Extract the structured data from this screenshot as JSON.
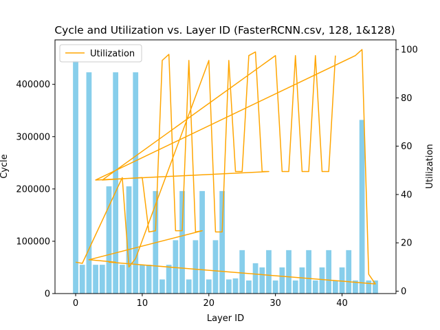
{
  "chart_data": {
    "type": "bar",
    "title": "Cycle and Utilization vs. Layer ID (FasterRCNN.csv, 128, 1&128)",
    "xlabel": "Layer ID",
    "ylabel_left": "Cycle",
    "ylabel_right": "Utilization",
    "xlim": [
      -3.1,
      48.1
    ],
    "ylim_left": [
      0,
      485000
    ],
    "ylim_right": [
      -1,
      104
    ],
    "x_ticks": [
      0,
      10,
      20,
      30,
      40
    ],
    "y_left_ticks": [
      0,
      100000,
      200000,
      300000,
      400000
    ],
    "y_right_ticks": [
      0,
      20,
      40,
      60,
      80,
      100
    ],
    "bar_color": "#87ceeb",
    "line_color": "#ffa500",
    "legend": {
      "label": "Utilization",
      "placement": "upper-left"
    },
    "x": [
      0,
      1,
      2,
      3,
      4,
      5,
      6,
      7,
      8,
      9,
      10,
      11,
      12,
      13,
      14,
      15,
      16,
      17,
      18,
      19,
      20,
      21,
      22,
      23,
      24,
      25,
      26,
      27,
      28,
      29,
      30,
      31,
      32,
      33,
      34,
      35,
      36,
      37,
      38,
      39,
      40,
      41,
      42,
      43,
      44,
      45
    ],
    "cycle": [
      445000,
      55000,
      423000,
      55000,
      55000,
      205000,
      423000,
      55000,
      205000,
      423000,
      55000,
      55000,
      196000,
      27000,
      55000,
      102000,
      196000,
      27000,
      102000,
      196000,
      27000,
      102000,
      196000,
      27000,
      29000,
      83000,
      25000,
      58000,
      50000,
      83000,
      25000,
      50000,
      83000,
      25000,
      50000,
      83000,
      25000,
      50000,
      83000,
      25000,
      50000,
      83000,
      25000,
      332000,
      25000,
      25000
    ],
    "utilization_line": {
      "x": [
        0,
        1,
        7,
        8,
        9,
        20,
        21,
        22,
        23,
        24,
        25,
        26,
        27,
        28,
        29,
        3,
        42,
        43,
        44,
        45,
        5,
        6,
        2,
        19,
        18,
        17,
        16,
        15,
        14,
        13,
        12,
        11,
        10,
        4,
        30,
        31,
        32,
        33,
        34,
        35,
        36,
        37,
        38,
        39
      ],
      "y": [
        12,
        11.5,
        47,
        10,
        13.5,
        95.5,
        24.5,
        24.5,
        95.5,
        49.5,
        49.5,
        97.5,
        99,
        49.5,
        49.5,
        46,
        97.5,
        100,
        7,
        3,
        12,
        12,
        13,
        25,
        24.5,
        95.5,
        25,
        25,
        98,
        95.5,
        25,
        24.5,
        47,
        46,
        97.5,
        49.5,
        49.5,
        97.5,
        49.5,
        49.5,
        97.5,
        49.5,
        49.5,
        97.5
      ]
    }
  }
}
